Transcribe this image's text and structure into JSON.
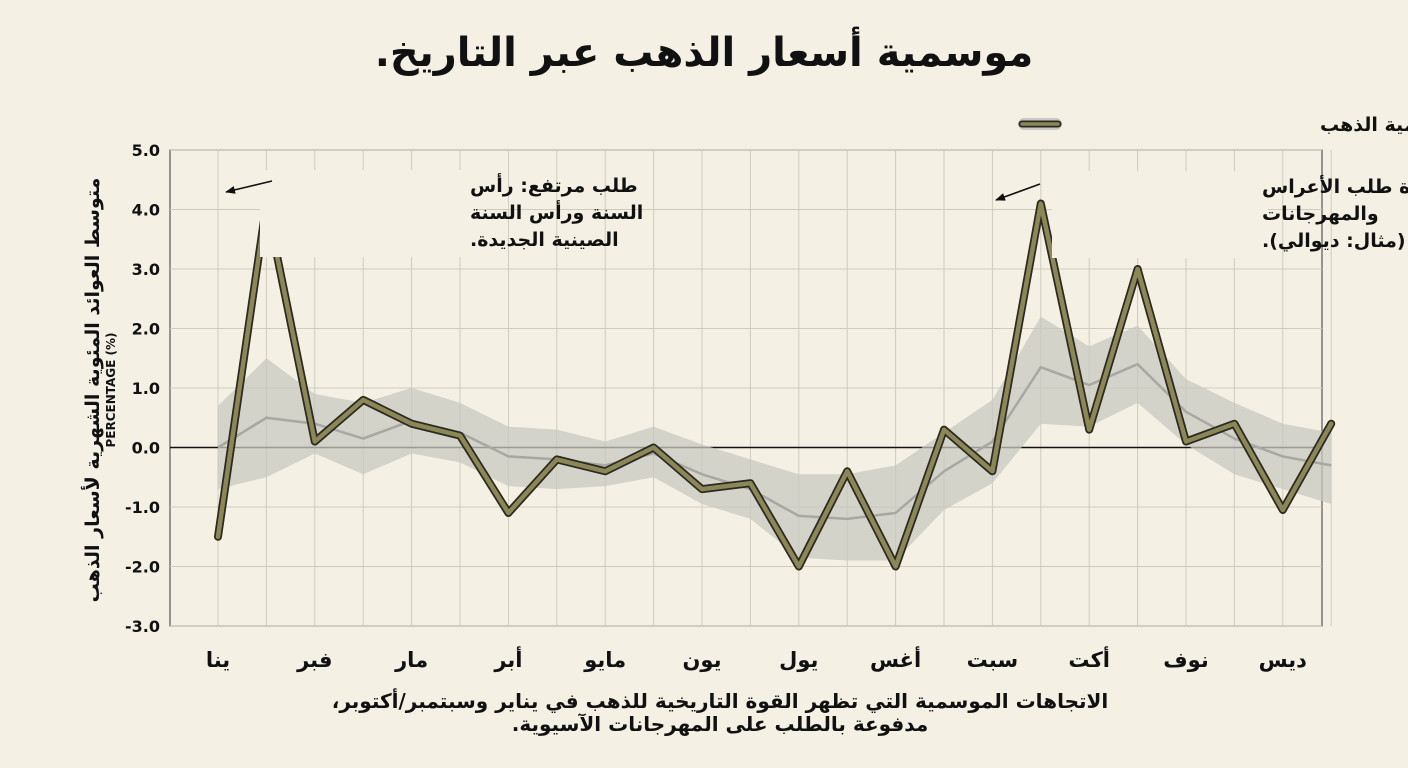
{
  "chart_data": {
    "type": "line",
    "title": "موسمية أسعار الذهب عبر التاريخ.",
    "ylabel": "متوسط العوائد المئوية الشهرية لأسعار الذهب",
    "ylabel_unit": "(%) PERCENTAGE",
    "caption": [
      "الاتجاهات الموسمية التي تظهر القوة التاريخية للذهب في يناير وسبتمبر/أكتوبر،",
      "مدفوعة بالطلب على المهرجانات الآسيوية."
    ],
    "ylim": [
      -3.0,
      5.0
    ],
    "yticks": [
      "5.0",
      "4.0",
      "3.0",
      "2.0",
      "1.0",
      "0.0",
      "-1.0",
      "-2.0",
      "-3.0"
    ],
    "ytick_values": [
      5,
      4,
      3,
      2,
      1,
      0,
      -1,
      -2,
      -3
    ],
    "categories": [
      "ينا",
      "فبر",
      "مار",
      "أبر",
      "مايو",
      "يون",
      "يول",
      "أغس",
      "سبت",
      "أكت",
      "نوف",
      "ديس"
    ],
    "x_range": [
      0,
      23
    ],
    "grid": true,
    "legend_position": "top-right",
    "series": [
      {
        "name": "مؤشر موسمية الذهب",
        "color": "#8c8756",
        "x": [
          0,
          1,
          2,
          3,
          4,
          5,
          6,
          7,
          8,
          9,
          10,
          11,
          12,
          13,
          14,
          15,
          16,
          17,
          18,
          19,
          20,
          21,
          22,
          23
        ],
        "y": [
          -1.5,
          4.1,
          0.1,
          0.8,
          0.4,
          0.2,
          -1.1,
          -0.2,
          -0.4,
          0.0,
          -0.7,
          -0.6,
          -2.0,
          -0.4,
          -2.0,
          0.3,
          -0.4,
          4.1,
          0.3,
          3.0,
          0.1,
          0.4,
          -1.05,
          0.4
        ]
      }
    ],
    "mean_line": {
      "color": "#a8a8a2",
      "x": [
        0,
        1,
        2,
        3,
        4,
        5,
        6,
        7,
        8,
        9,
        10,
        11,
        12,
        13,
        14,
        15,
        16,
        17,
        18,
        19,
        20,
        21,
        22,
        23
      ],
      "y": [
        0.0,
        0.5,
        0.4,
        0.15,
        0.45,
        0.25,
        -0.15,
        -0.2,
        -0.3,
        -0.1,
        -0.45,
        -0.7,
        -1.15,
        -1.2,
        -1.1,
        -0.4,
        0.1,
        1.35,
        1.05,
        1.4,
        0.6,
        0.15,
        -0.15,
        -0.3
      ]
    },
    "band": {
      "color": "#c8c8c2",
      "upper": [
        0.7,
        1.5,
        0.9,
        0.75,
        1.0,
        0.75,
        0.35,
        0.3,
        0.1,
        0.35,
        0.05,
        -0.2,
        -0.45,
        -0.45,
        -0.3,
        0.25,
        0.8,
        2.2,
        1.7,
        2.05,
        1.15,
        0.75,
        0.4,
        0.25
      ],
      "lower": [
        -0.7,
        -0.5,
        -0.1,
        -0.45,
        -0.1,
        -0.25,
        -0.65,
        -0.7,
        -0.65,
        -0.5,
        -0.95,
        -1.2,
        -1.85,
        -1.9,
        -1.9,
        -1.05,
        -0.6,
        0.4,
        0.35,
        0.75,
        0.05,
        -0.45,
        -0.7,
        -0.95
      ]
    },
    "annotations": [
      {
        "lines": [
          "طلب مرتفع: رأس",
          "السنة ورأس السنة",
          "الصينية الجديدة."
        ],
        "target_x": 1,
        "target_y": 4.1
      },
      {
        "lines": [
          "زيادة طلب الأعراس",
          "والمهرجانات",
          "(مثال: ديوالي)."
        ],
        "target_x": 17,
        "target_y": 4.1
      }
    ]
  }
}
